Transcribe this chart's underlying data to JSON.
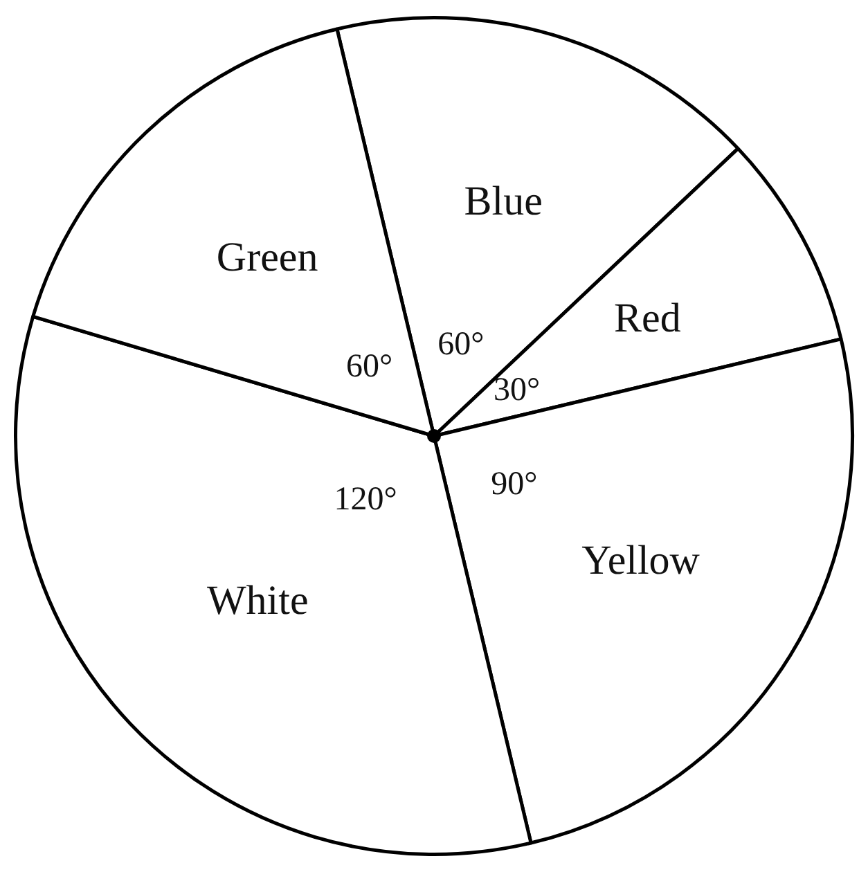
{
  "chart_data": {
    "type": "pie",
    "categories": [
      "Blue",
      "Red",
      "Yellow",
      "White",
      "Green"
    ],
    "values": [
      60,
      30,
      90,
      120,
      60
    ],
    "colors": [
      "#ffffff",
      "#ffffff",
      "#ffffff",
      "#ffffff",
      "#ffffff"
    ],
    "value_labels": [
      "60°",
      "30°",
      "90°",
      "120°",
      "60°"
    ],
    "legend": false
  }
}
